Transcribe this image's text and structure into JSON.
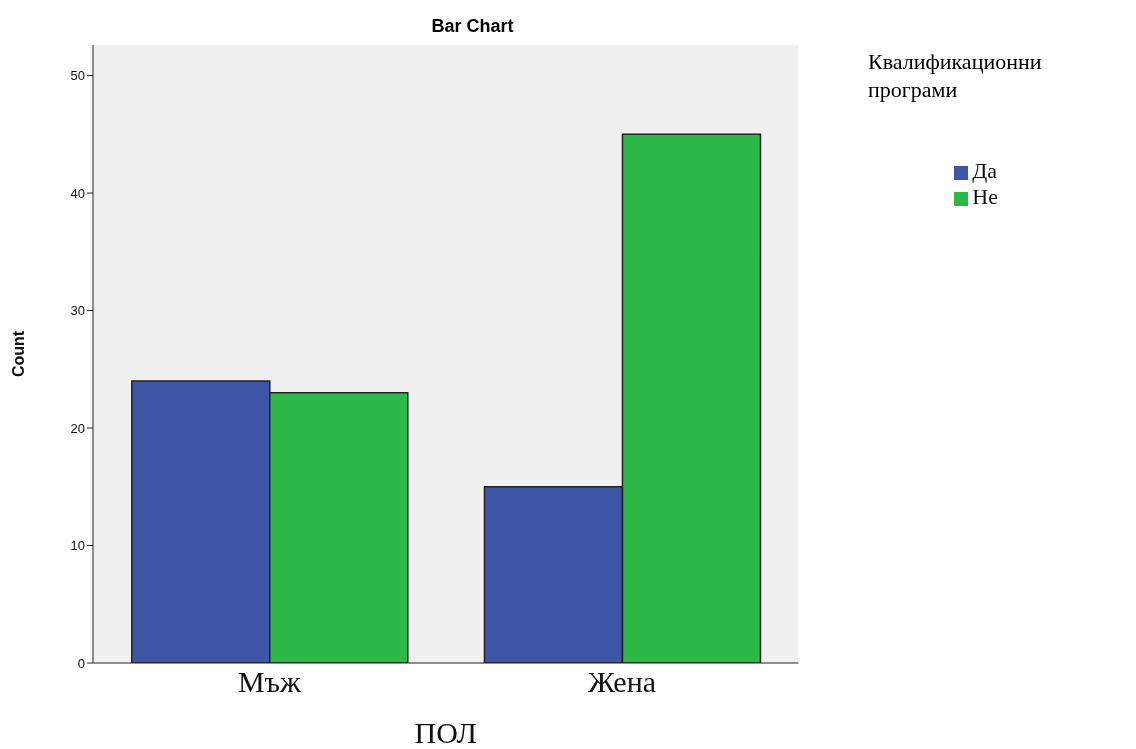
{
  "chart_data": {
    "type": "bar",
    "title": "Bar Chart",
    "xlabel": "ПОЛ",
    "ylabel": "Count",
    "legend_title": "Квалификационни програми",
    "categories": [
      "Мъж",
      "Жена"
    ],
    "series": [
      {
        "name": "Да",
        "color": "#3f55a6",
        "values": [
          24,
          15
        ]
      },
      {
        "name": "Не",
        "color": "#2db84a",
        "values": [
          23,
          45
        ]
      }
    ],
    "ylim": [
      0,
      52.6
    ],
    "yticks": [
      0,
      10,
      20,
      30,
      40,
      50
    ],
    "grid": false,
    "legend": "top right"
  }
}
